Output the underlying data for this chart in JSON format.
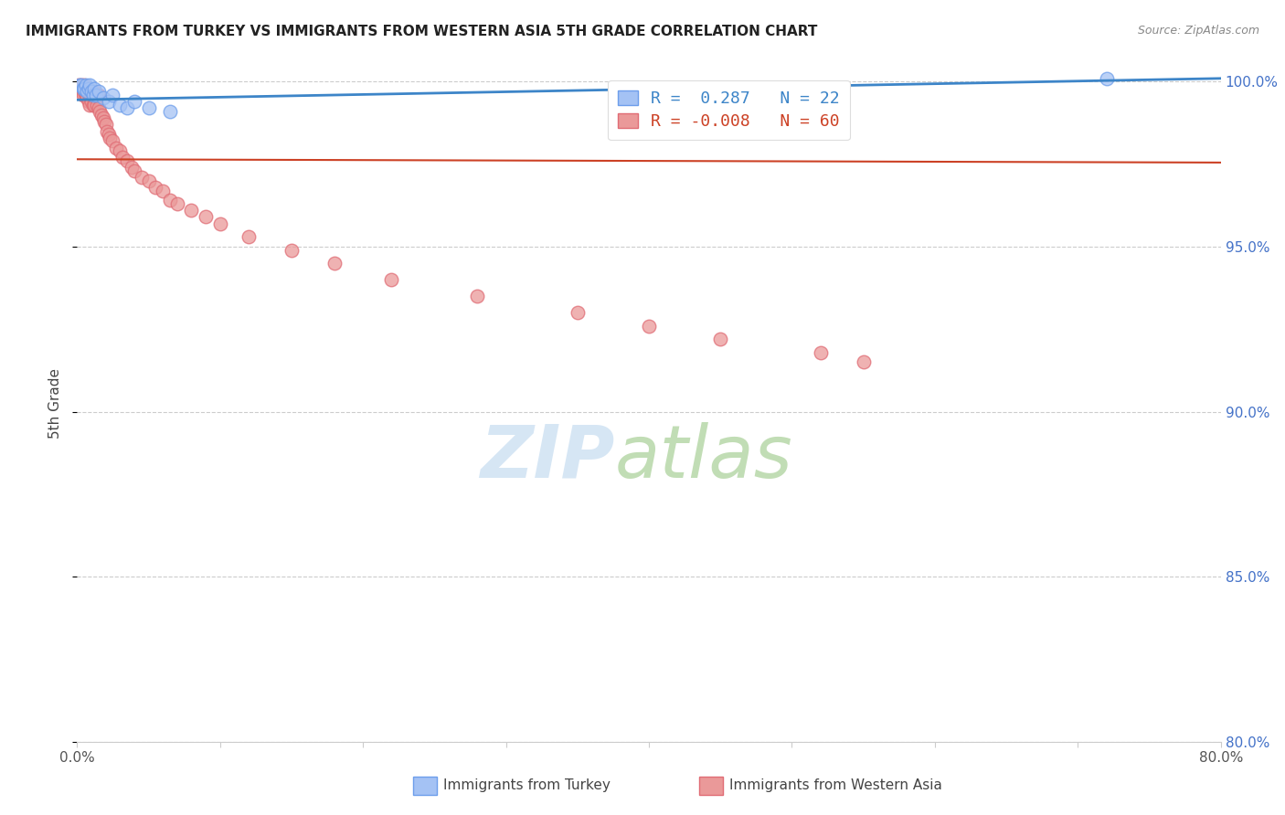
{
  "title": "IMMIGRANTS FROM TURKEY VS IMMIGRANTS FROM WESTERN ASIA 5TH GRADE CORRELATION CHART",
  "source": "Source: ZipAtlas.com",
  "ylabel": "5th Grade",
  "xlim": [
    0.0,
    0.8
  ],
  "ylim": [
    0.8,
    1.005
  ],
  "turkey_color": "#a4c2f4",
  "turkey_edge_color": "#6d9eeb",
  "western_asia_color": "#ea9999",
  "western_asia_edge_color": "#e06c75",
  "turkey_line_color": "#3d85c8",
  "western_asia_line_color": "#cc4125",
  "R_turkey": 0.287,
  "N_turkey": 22,
  "R_western_asia": -0.008,
  "N_western_asia": 60,
  "turkey_x": [
    0.002,
    0.003,
    0.004,
    0.005,
    0.006,
    0.007,
    0.008,
    0.009,
    0.01,
    0.011,
    0.012,
    0.013,
    0.015,
    0.018,
    0.022,
    0.025,
    0.03,
    0.035,
    0.04,
    0.05,
    0.065,
    0.72
  ],
  "turkey_y": [
    0.999,
    0.999,
    0.998,
    0.998,
    0.999,
    0.997,
    0.998,
    0.999,
    0.997,
    0.996,
    0.998,
    0.996,
    0.997,
    0.995,
    0.994,
    0.996,
    0.993,
    0.992,
    0.994,
    0.992,
    0.991,
    1.001
  ],
  "western_asia_x": [
    0.001,
    0.002,
    0.003,
    0.003,
    0.004,
    0.004,
    0.005,
    0.005,
    0.006,
    0.006,
    0.007,
    0.007,
    0.008,
    0.008,
    0.009,
    0.009,
    0.01,
    0.01,
    0.011,
    0.011,
    0.012,
    0.012,
    0.013,
    0.014,
    0.015,
    0.015,
    0.016,
    0.017,
    0.018,
    0.019,
    0.02,
    0.021,
    0.022,
    0.023,
    0.025,
    0.027,
    0.03,
    0.032,
    0.035,
    0.038,
    0.04,
    0.045,
    0.05,
    0.055,
    0.06,
    0.065,
    0.07,
    0.08,
    0.09,
    0.1,
    0.12,
    0.15,
    0.18,
    0.22,
    0.28,
    0.35,
    0.4,
    0.45,
    0.52,
    0.55
  ],
  "western_asia_y": [
    0.999,
    0.998,
    0.999,
    0.997,
    0.998,
    0.996,
    0.999,
    0.997,
    0.998,
    0.996,
    0.997,
    0.995,
    0.997,
    0.994,
    0.996,
    0.993,
    0.997,
    0.994,
    0.996,
    0.993,
    0.997,
    0.993,
    0.995,
    0.993,
    0.996,
    0.992,
    0.991,
    0.99,
    0.989,
    0.988,
    0.987,
    0.985,
    0.984,
    0.983,
    0.982,
    0.98,
    0.979,
    0.977,
    0.976,
    0.974,
    0.973,
    0.971,
    0.97,
    0.968,
    0.967,
    0.964,
    0.963,
    0.961,
    0.959,
    0.957,
    0.953,
    0.949,
    0.945,
    0.94,
    0.935,
    0.93,
    0.926,
    0.922,
    0.918,
    0.915
  ],
  "turkey_trend_x": [
    0.0,
    0.8
  ],
  "turkey_trend_y": [
    0.9945,
    1.001
  ],
  "western_trend_x": [
    0.0,
    0.8
  ],
  "western_trend_y": [
    0.9765,
    0.9755
  ],
  "background_color": "#ffffff",
  "watermark_zip": "ZIP",
  "watermark_atlas": "atlas",
  "watermark_color_zip": "#c9daf8",
  "watermark_color_atlas": "#b6d7a8"
}
